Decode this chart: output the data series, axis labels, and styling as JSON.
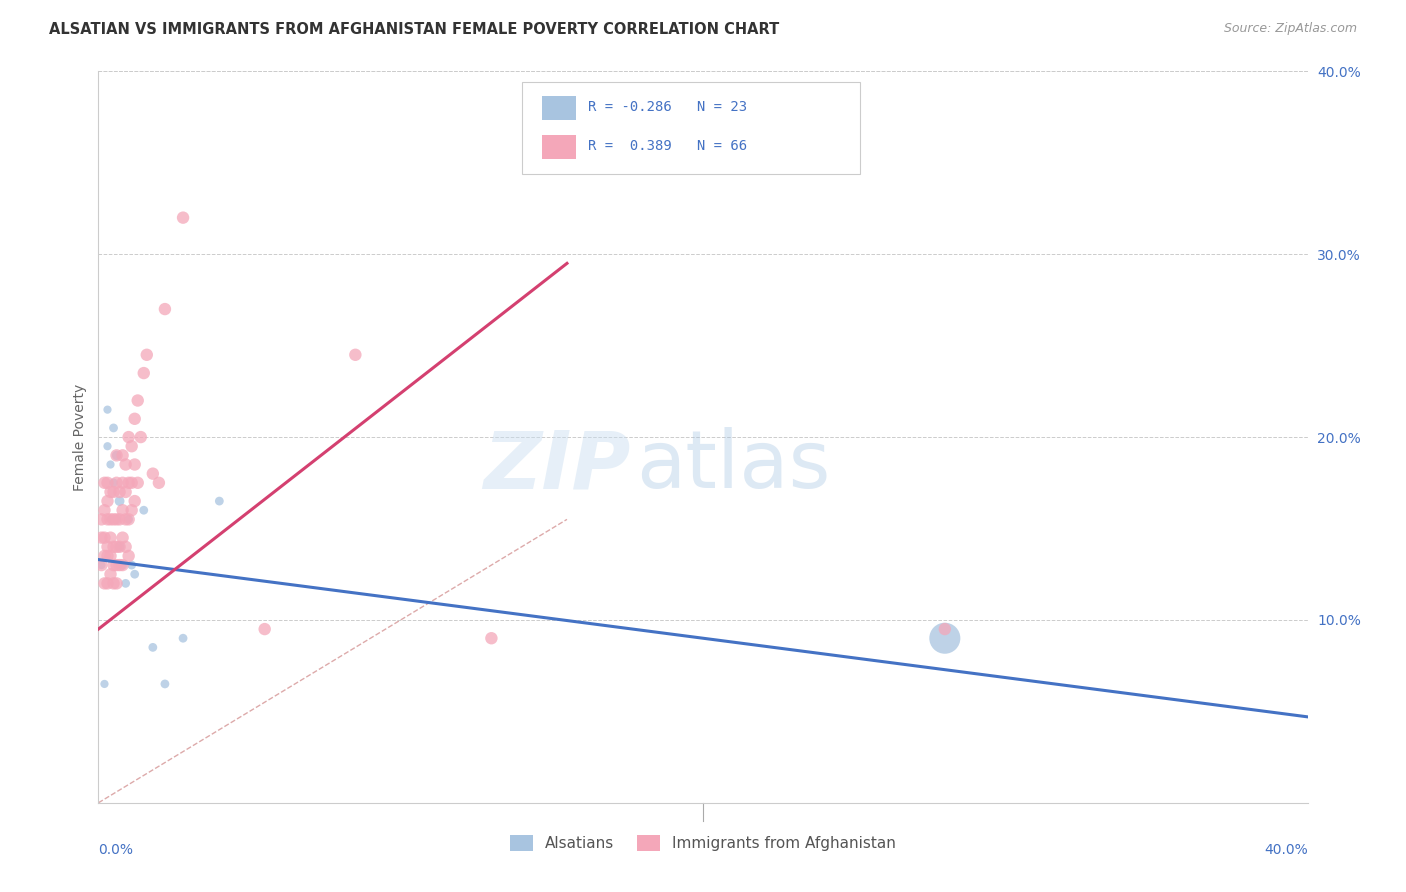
{
  "title": "ALSATIAN VS IMMIGRANTS FROM AFGHANISTAN FEMALE POVERTY CORRELATION CHART",
  "source": "Source: ZipAtlas.com",
  "ylabel": "Female Poverty",
  "xlim": [
    0.0,
    0.4
  ],
  "ylim": [
    0.0,
    0.4
  ],
  "yticks": [
    0.1,
    0.2,
    0.3,
    0.4
  ],
  "ytick_labels": [
    "10.0%",
    "20.0%",
    "30.0%",
    "40.0%"
  ],
  "series1_name": "Alsatians",
  "series1_color": "#a8c4e0",
  "series1_line_color": "#4472c4",
  "series1_R": -0.286,
  "series1_N": 23,
  "series2_name": "Immigrants from Afghanistan",
  "series2_color": "#f4a7b9",
  "series2_line_color": "#d44070",
  "series2_R": 0.389,
  "series2_N": 66,
  "background_color": "#ffffff",
  "grid_color": "#cccccc",
  "alsatians_x": [
    0.001,
    0.002,
    0.003,
    0.003,
    0.004,
    0.004,
    0.005,
    0.005,
    0.006,
    0.006,
    0.007,
    0.007,
    0.008,
    0.009,
    0.01,
    0.011,
    0.012,
    0.015,
    0.018,
    0.022,
    0.028,
    0.04,
    0.28
  ],
  "alsatians_y": [
    0.13,
    0.065,
    0.195,
    0.215,
    0.185,
    0.155,
    0.205,
    0.175,
    0.19,
    0.155,
    0.165,
    0.14,
    0.13,
    0.12,
    0.155,
    0.13,
    0.125,
    0.16,
    0.085,
    0.065,
    0.09,
    0.165,
    0.09
  ],
  "alsatians_size": [
    35,
    35,
    35,
    35,
    35,
    35,
    40,
    40,
    45,
    45,
    50,
    50,
    45,
    40,
    40,
    40,
    40,
    40,
    40,
    40,
    40,
    40,
    500
  ],
  "afghan_x": [
    0.001,
    0.001,
    0.001,
    0.002,
    0.002,
    0.002,
    0.002,
    0.002,
    0.003,
    0.003,
    0.003,
    0.003,
    0.003,
    0.003,
    0.004,
    0.004,
    0.004,
    0.004,
    0.004,
    0.005,
    0.005,
    0.005,
    0.005,
    0.005,
    0.006,
    0.006,
    0.006,
    0.006,
    0.006,
    0.006,
    0.007,
    0.007,
    0.007,
    0.007,
    0.008,
    0.008,
    0.008,
    0.008,
    0.008,
    0.009,
    0.009,
    0.009,
    0.009,
    0.01,
    0.01,
    0.01,
    0.01,
    0.011,
    0.011,
    0.011,
    0.012,
    0.012,
    0.012,
    0.013,
    0.013,
    0.014,
    0.015,
    0.016,
    0.018,
    0.02,
    0.022,
    0.028,
    0.055,
    0.085,
    0.13,
    0.28
  ],
  "afghan_y": [
    0.13,
    0.145,
    0.155,
    0.12,
    0.135,
    0.145,
    0.16,
    0.175,
    0.12,
    0.135,
    0.14,
    0.155,
    0.165,
    0.175,
    0.125,
    0.135,
    0.145,
    0.155,
    0.17,
    0.12,
    0.13,
    0.14,
    0.155,
    0.17,
    0.12,
    0.13,
    0.14,
    0.155,
    0.175,
    0.19,
    0.13,
    0.14,
    0.155,
    0.17,
    0.13,
    0.145,
    0.16,
    0.175,
    0.19,
    0.14,
    0.155,
    0.17,
    0.185,
    0.135,
    0.155,
    0.175,
    0.2,
    0.16,
    0.175,
    0.195,
    0.165,
    0.185,
    0.21,
    0.175,
    0.22,
    0.2,
    0.235,
    0.245,
    0.18,
    0.175,
    0.27,
    0.32,
    0.095,
    0.245,
    0.09,
    0.095
  ],
  "diag_line_end": 0.155,
  "trend_blue_x0": 0.0,
  "trend_blue_y0": 0.133,
  "trend_blue_x1": 0.4,
  "trend_blue_y1": 0.047,
  "trend_pink_x0": 0.0,
  "trend_pink_y0": 0.095,
  "trend_pink_x1": 0.155,
  "trend_pink_y1": 0.295
}
